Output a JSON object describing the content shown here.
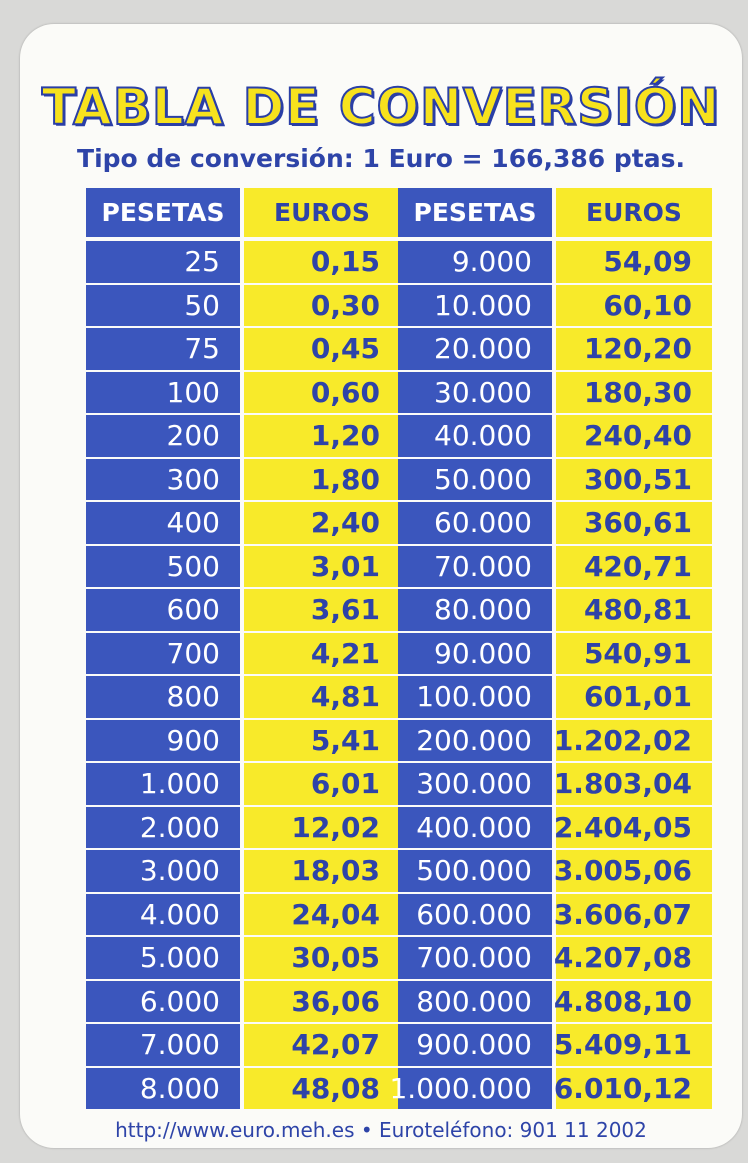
{
  "title": "TABLA DE CONVERSIÓN",
  "subtitle": "Tipo de conversión: 1 Euro = 166,386 ptas.",
  "headers": {
    "pesetas": "PESETAS",
    "euros": "EUROS"
  },
  "left_table": [
    [
      "25",
      "0,15"
    ],
    [
      "50",
      "0,30"
    ],
    [
      "75",
      "0,45"
    ],
    [
      "100",
      "0,60"
    ],
    [
      "200",
      "1,20"
    ],
    [
      "300",
      "1,80"
    ],
    [
      "400",
      "2,40"
    ],
    [
      "500",
      "3,01"
    ],
    [
      "600",
      "3,61"
    ],
    [
      "700",
      "4,21"
    ],
    [
      "800",
      "4,81"
    ],
    [
      "900",
      "5,41"
    ],
    [
      "1.000",
      "6,01"
    ],
    [
      "2.000",
      "12,02"
    ],
    [
      "3.000",
      "18,03"
    ],
    [
      "4.000",
      "24,04"
    ],
    [
      "5.000",
      "30,05"
    ],
    [
      "6.000",
      "36,06"
    ],
    [
      "7.000",
      "42,07"
    ],
    [
      "8.000",
      "48,08"
    ]
  ],
  "right_table": [
    [
      "9.000",
      "54,09"
    ],
    [
      "10.000",
      "60,10"
    ],
    [
      "20.000",
      "120,20"
    ],
    [
      "30.000",
      "180,30"
    ],
    [
      "40.000",
      "240,40"
    ],
    [
      "50.000",
      "300,51"
    ],
    [
      "60.000",
      "360,61"
    ],
    [
      "70.000",
      "420,71"
    ],
    [
      "80.000",
      "480,81"
    ],
    [
      "90.000",
      "540,91"
    ],
    [
      "100.000",
      "601,01"
    ],
    [
      "200.000",
      "1.202,02"
    ],
    [
      "300.000",
      "1.803,04"
    ],
    [
      "400.000",
      "2.404,05"
    ],
    [
      "500.000",
      "3.005,06"
    ],
    [
      "600.000",
      "3.606,07"
    ],
    [
      "700.000",
      "4.207,08"
    ],
    [
      "800.000",
      "4.808,10"
    ],
    [
      "900.000",
      "5.409,11"
    ],
    [
      "1.000.000",
      "6.010,12"
    ]
  ],
  "footer": "http://www.euro.meh.es • Euroteléfono: 901 11 2002",
  "colors": {
    "blue": "#3b56bd",
    "yellow": "#f8ea2a",
    "text_blue": "#2e43a8"
  }
}
